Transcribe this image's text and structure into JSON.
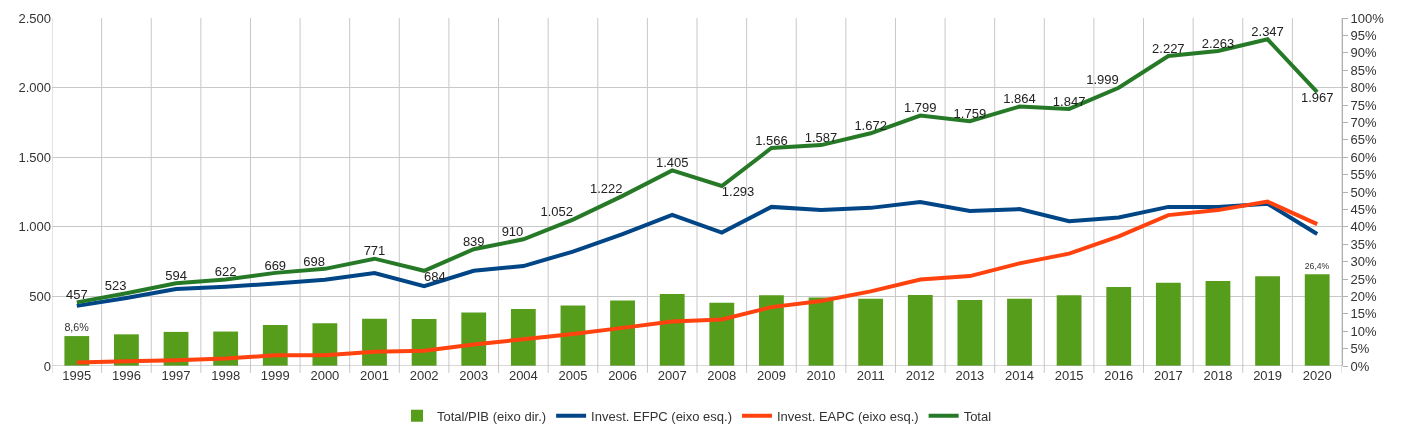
{
  "chart_data": {
    "type": "line",
    "categories": [
      "1995",
      "1996",
      "1997",
      "1998",
      "1999",
      "2000",
      "2001",
      "2002",
      "2003",
      "2004",
      "2005",
      "2006",
      "2007",
      "2008",
      "2009",
      "2010",
      "2011",
      "2012",
      "2013",
      "2014",
      "2015",
      "2016",
      "2017",
      "2018",
      "2019",
      "2020"
    ],
    "series": [
      {
        "name": "Total/PIB (eixo dir.)",
        "type": "bar",
        "axis": "y2",
        "color": "#579d1c",
        "values": [
          8.6,
          9.1,
          9.8,
          9.9,
          11.8,
          12.3,
          13.6,
          13.5,
          15.4,
          16.4,
          17.4,
          18.8,
          20.7,
          18.2,
          20.3,
          19.7,
          19.3,
          20.4,
          19.0,
          19.3,
          20.3,
          22.7,
          23.9,
          24.4,
          25.8,
          26.4
        ],
        "value_labels": [
          "8,6%",
          null,
          null,
          null,
          null,
          null,
          null,
          null,
          null,
          null,
          null,
          null,
          null,
          null,
          null,
          null,
          null,
          null,
          null,
          null,
          null,
          null,
          null,
          null,
          null,
          "26,4%"
        ]
      },
      {
        "name": "Invest. EFPC (eixo esq.)",
        "color": "#004586",
        "values": [
          432,
          489,
          553,
          569,
          592,
          620,
          668,
          574,
          684,
          718,
          822,
          948,
          1086,
          959,
          1143,
          1120,
          1136,
          1178,
          1113,
          1127,
          1040,
          1067,
          1143,
          1143,
          1166,
          948
        ]
      },
      {
        "name": "Invest. EAPC (eixo esq.)",
        "color": "#ff420e",
        "values": [
          25,
          34,
          41,
          53,
          77,
          78,
          103,
          110,
          155,
          192,
          230,
          274,
          319,
          334,
          423,
          467,
          536,
          621,
          646,
          737,
          807,
          932,
          1084,
          1120,
          1181,
          1019
        ]
      },
      {
        "name": "Total",
        "color": "#267a27",
        "values": [
          457,
          523,
          594,
          622,
          669,
          698,
          771,
          684,
          839,
          910,
          1052,
          1222,
          1405,
          1293,
          1566,
          1587,
          1672,
          1799,
          1759,
          1864,
          1847,
          1999,
          2227,
          2263,
          2347,
          1967
        ],
        "value_labels": [
          "457",
          "523",
          "594",
          "622",
          "669",
          "698",
          "771",
          "684",
          "839",
          "910",
          "1.052",
          "1.222",
          "1.405",
          "1.293",
          "1.566",
          "1.587",
          "1.672",
          "1.799",
          "1.759",
          "1.864",
          "1.847",
          "1.999",
          "2.227",
          "2.263",
          "2.347",
          "1.967"
        ]
      }
    ],
    "ylim": [
      0,
      2500
    ],
    "yticks": [
      {
        "value": 0,
        "label": "0"
      },
      {
        "value": 500,
        "label": "500"
      },
      {
        "value": 1000,
        "label": "1.000"
      },
      {
        "value": 1500,
        "label": "1.500"
      },
      {
        "value": 2000,
        "label": "2.000"
      },
      {
        "value": 2500,
        "label": "2.500"
      }
    ],
    "y2lim": [
      0,
      100
    ],
    "y2ticks": [
      {
        "value": 0,
        "label": "0%"
      },
      {
        "value": 5,
        "label": "5%"
      },
      {
        "value": 10,
        "label": "10%"
      },
      {
        "value": 15,
        "label": "15%"
      },
      {
        "value": 20,
        "label": "20%"
      },
      {
        "value": 25,
        "label": "25%"
      },
      {
        "value": 30,
        "label": "30%"
      },
      {
        "value": 35,
        "label": "35%"
      },
      {
        "value": 40,
        "label": "40%"
      },
      {
        "value": 45,
        "label": "45%"
      },
      {
        "value": 50,
        "label": "50%"
      },
      {
        "value": 55,
        "label": "55%"
      },
      {
        "value": 60,
        "label": "60%"
      },
      {
        "value": 65,
        "label": "65%"
      },
      {
        "value": 70,
        "label": "70%"
      },
      {
        "value": 75,
        "label": "75%"
      },
      {
        "value": 80,
        "label": "80%"
      },
      {
        "value": 85,
        "label": "85%"
      },
      {
        "value": 90,
        "label": "90%"
      },
      {
        "value": 95,
        "label": "95%"
      },
      {
        "value": 100,
        "label": "100%"
      }
    ],
    "grid": true,
    "legend": "bottom",
    "marker": "none",
    "line_style": "solid"
  }
}
